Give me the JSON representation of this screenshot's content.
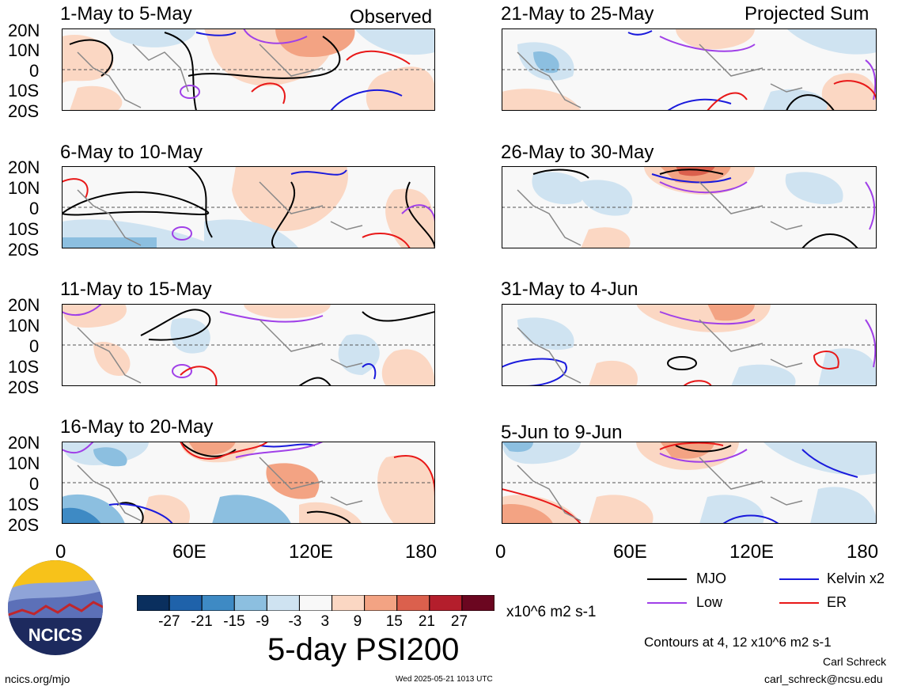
{
  "figure": {
    "title": "5-day PSI200",
    "label_left": "Observed",
    "label_right": "Projected Sum",
    "units": "x10^6 m2 s-1",
    "contour_note": "Contours at 4, 12 x10^6 m2 s-1",
    "author": "Carl Schreck",
    "email": "carl_schreck@ncsu.edu",
    "site": "ncics.org/mjo",
    "timestamp": "Wed 2025-05-21 1013 UTC",
    "logo_text": "NCICS"
  },
  "axes": {
    "y_ticks": [
      "20N",
      "10N",
      "0",
      "10S",
      "20S"
    ],
    "x_ticks": [
      "0",
      "60E",
      "120E",
      "180"
    ]
  },
  "panels_left": [
    {
      "period": "1-May to 5-May"
    },
    {
      "period": "6-May to 10-May"
    },
    {
      "period": "11-May to 15-May"
    },
    {
      "period": "16-May to 20-May"
    }
  ],
  "panels_right": [
    {
      "period": "21-May to 25-May"
    },
    {
      "period": "26-May to 30-May"
    },
    {
      "period": "31-May to 4-Jun"
    },
    {
      "period": "5-Jun to 9-Jun"
    }
  ],
  "colorbar": {
    "tick_labels": [
      "-27",
      "-21",
      "-15",
      "-9",
      "-3",
      "3",
      "9",
      "15",
      "21",
      "27"
    ],
    "colors": [
      "#0a2f5e",
      "#1f62aa",
      "#3e8ac4",
      "#8cbfe0",
      "#cfe3f1",
      "#f8f8f8",
      "#fbd7c3",
      "#f3a383",
      "#db604d",
      "#b41e2c",
      "#6b0620"
    ]
  },
  "legend": [
    {
      "label": "MJO",
      "color": "#000000"
    },
    {
      "label": "Kelvin x2",
      "color": "#1a1adc"
    },
    {
      "label": "Low",
      "color": "#a040e8"
    },
    {
      "label": "ER",
      "color": "#e81818"
    }
  ]
}
